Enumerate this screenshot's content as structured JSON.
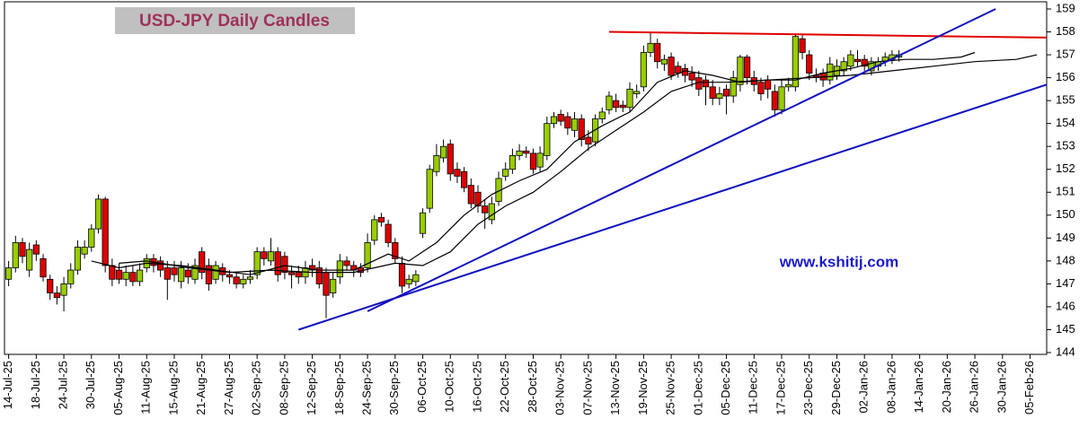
{
  "chart_data": {
    "type": "candlestick",
    "title": "USD-JPY Daily Candles",
    "annotation": "www.kshitij.com",
    "up_color": "#99cc00",
    "down_color": "#dd0000",
    "x": [
      0,
      1,
      2,
      3,
      4,
      5,
      6,
      7,
      8,
      9,
      10,
      11,
      12,
      13,
      14,
      15,
      16,
      17,
      18,
      19,
      20,
      21,
      22,
      23,
      24,
      25,
      26,
      27,
      28,
      29,
      30,
      31,
      32,
      33,
      34,
      35,
      36,
      37,
      38,
      39,
      40,
      41,
      42,
      43,
      44,
      45,
      46,
      47,
      48,
      49,
      50,
      51,
      52,
      53,
      54,
      55,
      56,
      57,
      58,
      59,
      60,
      61,
      62,
      63,
      64,
      65,
      66,
      67,
      68,
      69,
      70,
      71,
      72,
      73,
      74,
      75,
      76,
      77,
      78,
      79,
      80,
      81,
      82,
      83,
      84,
      85,
      86,
      87,
      88,
      89,
      90,
      91,
      92,
      93,
      94,
      95,
      96,
      97,
      98,
      99,
      100,
      101,
      102,
      103,
      104,
      105,
      106,
      107,
      108,
      109,
      110,
      111,
      112,
      113,
      114,
      115,
      116,
      117,
      118,
      119,
      120,
      121,
      122,
      123,
      124,
      125,
      126,
      127,
      128,
      129
    ],
    "open": [
      147.2,
      147.7,
      148.8,
      147.6,
      148.7,
      148.1,
      147.2,
      146.6,
      146.5,
      147.0,
      147.6,
      148.3,
      148.6,
      149.4,
      150.7,
      147.8,
      147.6,
      147.2,
      147.5,
      147.1,
      147.7,
      148.1,
      148.0,
      147.7,
      147.7,
      147.1,
      147.6,
      147.2,
      148.4,
      147.8,
      147.2,
      147.7,
      147.4,
      147.3,
      147.0,
      147.2,
      147.4,
      148.4,
      148.0,
      148.4,
      148.2,
      147.5,
      147.5,
      147.3,
      147.8,
      147.7,
      147.5,
      146.6,
      147.3,
      148.0,
      147.8,
      147.7,
      147.7,
      148.9,
      149.9,
      149.6,
      148.8,
      147.9,
      147.0,
      147.1,
      149.2,
      150.3,
      151.9,
      152.5,
      153.1,
      152.0,
      151.9,
      151.3,
      151.0,
      150.4,
      149.8,
      150.6,
      151.7,
      152.0,
      152.6,
      152.8,
      152.7,
      152.1,
      152.6,
      154.0,
      154.4,
      154.3,
      153.7,
      154.2,
      153.4,
      153.2,
      154.2,
      154.6,
      155.0,
      154.8,
      154.7,
      155.3,
      155.6,
      157.1,
      157.5,
      156.6,
      156.9,
      156.5,
      156.4,
      156.2,
      156.0,
      155.9,
      155.6,
      155.1,
      155.5,
      155.2,
      155.7,
      156.9,
      156.0,
      155.8,
      155.9,
      155.4,
      154.6,
      155.6,
      155.6,
      157.7,
      157.0,
      156.1,
      156.2,
      155.9,
      156.1,
      156.3,
      156.5,
      156.8,
      156.8,
      156.3,
      156.5,
      156.7,
      156.8,
      156.9
    ],
    "high": [
      148.0,
      149.1,
      149.0,
      148.8,
      148.9,
      148.3,
      147.4,
      146.9,
      147.3,
      147.9,
      148.9,
      148.9,
      149.6,
      150.9,
      150.8,
      148.1,
      147.9,
      147.8,
      147.8,
      147.9,
      148.3,
      148.3,
      148.2,
      148.0,
      148.0,
      148.0,
      147.9,
      148.1,
      148.6,
      148.1,
      148.0,
      147.9,
      147.6,
      147.5,
      147.4,
      147.6,
      148.6,
      148.6,
      149.0,
      148.6,
      148.4,
      147.8,
      147.8,
      148.0,
      148.1,
      148.0,
      147.7,
      147.5,
      148.3,
      148.2,
      148.0,
      147.9,
      149.2,
      150.0,
      150.1,
      149.8,
      149.0,
      148.2,
      147.4,
      147.6,
      150.3,
      152.2,
      153.1,
      153.3,
      153.3,
      152.3,
      152.1,
      151.6,
      151.3,
      150.7,
      150.8,
      151.9,
      152.3,
      152.9,
      153.1,
      153.0,
      152.9,
      153.0,
      154.3,
      154.5,
      154.6,
      154.5,
      154.5,
      154.4,
      153.7,
      154.4,
      154.7,
      155.4,
      155.3,
      155.0,
      155.8,
      155.7,
      157.4,
      158.0,
      157.7,
      157.0,
      157.1,
      156.7,
      156.6,
      156.5,
      156.3,
      156.1,
      155.9,
      155.6,
      155.7,
      156.3,
      157.0,
      157.0,
      156.3,
      156.0,
      156.1,
      155.7,
      155.9,
      156.0,
      157.9,
      157.9,
      157.2,
      156.4,
      156.4,
      156.9,
      156.8,
      156.9,
      157.2,
      157.2,
      157.0,
      156.9,
      156.9,
      157.1,
      157.2,
      157.2
    ],
    "low": [
      146.9,
      147.5,
      147.9,
      147.3,
      148.0,
      147.1,
      146.3,
      146.1,
      145.8,
      146.8,
      147.4,
      148.1,
      148.4,
      149.2,
      147.5,
      146.9,
      147.0,
      146.9,
      146.9,
      146.9,
      147.5,
      147.5,
      147.3,
      146.3,
      147.1,
      146.8,
      147.0,
      147.0,
      147.2,
      146.7,
      147.0,
      147.1,
      147.0,
      146.8,
      146.8,
      147.0,
      147.2,
      147.8,
      147.8,
      147.1,
      147.2,
      146.8,
      147.0,
      147.0,
      147.3,
      146.8,
      145.5,
      146.4,
      147.0,
      147.6,
      147.3,
      147.3,
      147.5,
      148.7,
      149.5,
      148.6,
      147.9,
      146.6,
      146.8,
      146.9,
      149.0,
      150.1,
      151.7,
      152.3,
      151.5,
      151.4,
      151.0,
      150.3,
      150.1,
      149.4,
      149.6,
      150.4,
      151.5,
      151.8,
      152.4,
      152.5,
      151.8,
      151.9,
      152.4,
      153.8,
      153.9,
      153.5,
      153.4,
      153.0,
      152.8,
      153.0,
      154.0,
      154.4,
      154.5,
      154.5,
      154.5,
      155.1,
      155.4,
      156.9,
      156.4,
      156.3,
      155.9,
      156.0,
      155.8,
      155.6,
      155.2,
      154.8,
      154.8,
      154.8,
      154.4,
      154.9,
      155.4,
      155.7,
      155.4,
      155.0,
      155.1,
      154.3,
      154.4,
      155.4,
      155.4,
      156.8,
      155.9,
      155.8,
      155.6,
      155.7,
      155.9,
      156.1,
      156.3,
      156.5,
      156.3,
      156.1,
      156.3,
      156.5,
      156.6,
      156.7
    ],
    "close": [
      147.7,
      148.8,
      148.2,
      148.5,
      148.3,
      147.3,
      146.6,
      146.4,
      147.0,
      147.6,
      148.6,
      148.6,
      149.4,
      150.7,
      147.8,
      147.2,
      147.2,
      147.5,
      147.1,
      147.6,
      148.1,
      147.8,
      147.6,
      147.2,
      147.4,
      147.7,
      147.3,
      147.8,
      147.5,
      147.0,
      147.8,
      147.4,
      147.3,
      147.0,
      147.2,
      147.3,
      148.4,
      148.1,
      148.4,
      147.4,
      147.5,
      147.4,
      147.3,
      147.7,
      147.6,
      147.0,
      146.5,
      147.2,
      148.0,
      147.8,
      147.6,
      147.5,
      148.8,
      149.8,
      149.7,
      148.8,
      148.1,
      146.9,
      147.2,
      147.4,
      150.1,
      152.0,
      152.6,
      153.0,
      151.8,
      151.7,
      151.2,
      150.5,
      150.4,
      150.1,
      150.5,
      151.6,
      152.0,
      152.6,
      152.8,
      152.7,
      152.0,
      152.7,
      154.0,
      154.3,
      154.1,
      153.8,
      154.2,
      153.3,
      153.1,
      154.2,
      154.5,
      155.2,
      154.7,
      154.7,
      155.5,
      155.4,
      157.1,
      157.5,
      156.7,
      156.8,
      156.1,
      156.2,
      156.1,
      155.9,
      155.5,
      155.6,
      155.1,
      155.3,
      155.2,
      156.0,
      156.9,
      156.0,
      155.7,
      155.3,
      155.5,
      154.6,
      155.6,
      155.7,
      157.8,
      157.1,
      156.2,
      156.0,
      155.9,
      156.6,
      156.5,
      156.7,
      157.0,
      156.7,
      156.5,
      156.7,
      156.7,
      156.9,
      157.0,
      157.0
    ],
    "xlim": [
      -0.6,
      150.4
    ],
    "xticks": [
      {
        "value": 0,
        "label": "14-Jul-25"
      },
      {
        "value": 4,
        "label": "18-Jul-25"
      },
      {
        "value": 8,
        "label": "24-Jul-25"
      },
      {
        "value": 12,
        "label": "30-Jul-25"
      },
      {
        "value": 16,
        "label": "05-Aug-25"
      },
      {
        "value": 20,
        "label": "11-Aug-25"
      },
      {
        "value": 24,
        "label": "15-Aug-25"
      },
      {
        "value": 28,
        "label": "21-Aug-25"
      },
      {
        "value": 32,
        "label": "27-Aug-25"
      },
      {
        "value": 36,
        "label": "02-Sep-25"
      },
      {
        "value": 40,
        "label": "08-Sep-25"
      },
      {
        "value": 44,
        "label": "12-Sep-25"
      },
      {
        "value": 48,
        "label": "18-Sep-25"
      },
      {
        "value": 52,
        "label": "24-Sep-25"
      },
      {
        "value": 56,
        "label": "30-Sep-25"
      },
      {
        "value": 60,
        "label": "06-Oct-25"
      },
      {
        "value": 64,
        "label": "10-Oct-25"
      },
      {
        "value": 68,
        "label": "16-Oct-25"
      },
      {
        "value": 72,
        "label": "22-Oct-25"
      },
      {
        "value": 76,
        "label": "28-Oct-25"
      },
      {
        "value": 80,
        "label": "03-Nov-25"
      },
      {
        "value": 84,
        "label": "07-Nov-25"
      },
      {
        "value": 88,
        "label": "13-Nov-25"
      },
      {
        "value": 92,
        "label": "19-Nov-25"
      },
      {
        "value": 96,
        "label": "25-Nov-25"
      },
      {
        "value": 100,
        "label": "01-Dec-25"
      },
      {
        "value": 104,
        "label": "05-Dec-25"
      },
      {
        "value": 108,
        "label": "11-Dec-25"
      },
      {
        "value": 112,
        "label": "17-Dec-25"
      },
      {
        "value": 116,
        "label": "23-Dec-25"
      },
      {
        "value": 120,
        "label": "29-Dec-25"
      },
      {
        "value": 124,
        "label": "02-Jan-26"
      },
      {
        "value": 128,
        "label": "08-Jan-26"
      },
      {
        "value": 132,
        "label": "14-Jan-26"
      },
      {
        "value": 136,
        "label": "20-Jan-26"
      },
      {
        "value": 140,
        "label": "26-Jan-26"
      },
      {
        "value": 144,
        "label": "30-Jan-26"
      },
      {
        "value": 148,
        "label": "05-Feb-26"
      }
    ],
    "ylim": [
      144,
      159
    ],
    "yticks": [
      144,
      145,
      146,
      147,
      148,
      149,
      150,
      151,
      152,
      153,
      154,
      155,
      156,
      157,
      158,
      159
    ],
    "lines": [
      {
        "color": "#000000",
        "x": [
          12,
          16,
          20,
          25,
          30,
          35,
          40,
          45,
          50,
          55,
          58,
          62,
          66,
          70,
          74,
          78,
          82,
          86,
          90,
          94,
          98,
          102,
          106,
          110,
          114,
          118,
          122,
          126,
          130,
          134,
          138,
          140
        ],
        "values": [
          148.0,
          147.7,
          147.9,
          147.8,
          147.6,
          147.4,
          147.8,
          147.6,
          147.6,
          148.3,
          148.0,
          148.8,
          150.0,
          150.9,
          151.5,
          152.0,
          153.2,
          153.9,
          154.5,
          155.8,
          156.3,
          156.1,
          155.8,
          155.9,
          155.9,
          156.2,
          156.4,
          156.7,
          156.8,
          156.8,
          156.9,
          157.1
        ]
      },
      {
        "color": "#000000",
        "x": [
          16,
          20,
          26,
          32,
          38,
          44,
          50,
          56,
          60,
          64,
          68,
          72,
          76,
          80,
          84,
          88,
          92,
          96,
          100,
          104,
          110,
          116,
          122,
          128,
          134,
          140,
          146,
          149
        ],
        "values": [
          147.9,
          148.0,
          147.7,
          147.5,
          147.6,
          147.5,
          147.5,
          147.9,
          147.8,
          148.4,
          149.6,
          150.4,
          151.0,
          151.9,
          152.9,
          153.7,
          154.5,
          155.4,
          155.8,
          155.8,
          155.9,
          156.0,
          156.1,
          156.3,
          156.5,
          156.7,
          156.8,
          157.0
        ]
      },
      {
        "color": "#e00000",
        "x": [
          87,
          150.4
        ],
        "values": [
          158.0,
          157.75
        ]
      },
      {
        "color": "#1010c0",
        "x": [
          42,
          150.4
        ],
        "values": [
          145.0,
          155.7
        ]
      },
      {
        "color": "#1010c0",
        "x": [
          52,
          143
        ],
        "values": [
          145.8,
          159.0
        ]
      }
    ]
  }
}
